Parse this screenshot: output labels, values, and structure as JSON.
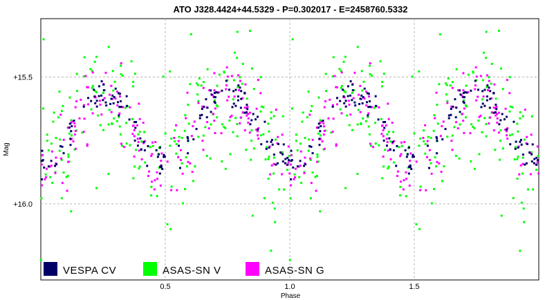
{
  "chart_data": {
    "type": "scatter",
    "title": "ATO J328.4424+44.5329  -  P=0.302017  -  E=2458760.5332",
    "xlabel": "Phase",
    "ylabel": "Mag",
    "xlim": [
      0.0,
      2.0
    ],
    "ylim": [
      16.3,
      15.27
    ],
    "y_inverted": true,
    "grid": "dashed",
    "x_ticks": [
      {
        "value": 0.5,
        "label": "0.5"
      },
      {
        "value": 1.0,
        "label": "1.0"
      },
      {
        "value": 1.5,
        "label": "1.5"
      }
    ],
    "y_ticks": [
      {
        "value": 15.5,
        "label": "+15.5"
      },
      {
        "value": 16.0,
        "label": "+16.0"
      }
    ],
    "legend_placement": "bottom-left",
    "model": {
      "description": "phased light curve, two minima per period",
      "mean_mag": 15.7,
      "half_amplitude": 0.14,
      "maxima_phase": [
        0.25,
        0.75,
        1.25,
        1.75
      ],
      "minima_phase": [
        0.0,
        0.5,
        1.0,
        1.5,
        2.0
      ]
    },
    "series": [
      {
        "name": "VESPA  CV",
        "color": "#000066",
        "points_per_cycle": 150,
        "scatter_mag": 0.03
      },
      {
        "name": "ASAS-SN  V",
        "color": "#00ff00",
        "points_per_cycle": 220,
        "scatter_mag": 0.14
      },
      {
        "name": "ASAS-SN  G",
        "color": "#ff00ff",
        "points_per_cycle": 190,
        "scatter_mag": 0.07
      }
    ]
  }
}
